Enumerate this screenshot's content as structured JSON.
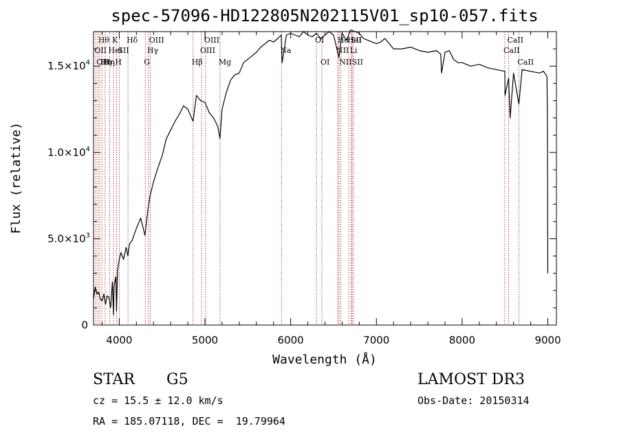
{
  "chart_data": {
    "type": "line",
    "title": "spec-57096-HD122805N202115V01_sp10-057.fits",
    "xlabel": "Wavelength (Å)",
    "ylabel": "Flux (relative)",
    "xlim": [
      3700,
      9100
    ],
    "ylim": [
      0,
      17000
    ],
    "x_ticks": [
      {
        "value": 4000,
        "label": "4000"
      },
      {
        "value": 5000,
        "label": "5000"
      },
      {
        "value": 6000,
        "label": "6000"
      },
      {
        "value": 7000,
        "label": "7000"
      },
      {
        "value": 8000,
        "label": "8000"
      },
      {
        "value": 9000,
        "label": "9000"
      }
    ],
    "y_ticks": [
      {
        "value": 0,
        "mantissa": "0",
        "exp": ""
      },
      {
        "value": 5000,
        "mantissa": "5.0×10",
        "exp": "3"
      },
      {
        "value": 10000,
        "mantissa": "1.0×10",
        "exp": "4"
      },
      {
        "value": 15000,
        "mantissa": "1.5×10",
        "exp": "4"
      }
    ],
    "series": [
      {
        "x": [
          3700,
          3720,
          3740,
          3760,
          3780,
          3800,
          3820,
          3840,
          3860,
          3880,
          3900,
          3920,
          3933,
          3940,
          3960,
          3968,
          3980,
          4000,
          4020,
          4050,
          4080,
          4100,
          4120,
          4150,
          4200,
          4250,
          4300,
          4320,
          4340,
          4360,
          4400,
          4450,
          4500,
          4550,
          4600,
          4650,
          4700,
          4750,
          4800,
          4861,
          4900,
          4950,
          5000,
          5050,
          5100,
          5150,
          5175,
          5200,
          5250,
          5300,
          5350,
          5400,
          5450,
          5500,
          5550,
          5600,
          5650,
          5700,
          5750,
          5800,
          5850,
          5890,
          5900,
          5950,
          6000,
          6050,
          6100,
          6150,
          6200,
          6250,
          6300,
          6350,
          6400,
          6450,
          6500,
          6563,
          6600,
          6650,
          6700,
          6750,
          6800,
          6850,
          6900,
          6950,
          7000,
          7050,
          7100,
          7150,
          7200,
          7300,
          7400,
          7500,
          7600,
          7700,
          7750,
          7760,
          7800,
          7850,
          7900,
          7950,
          8000,
          8100,
          8200,
          8300,
          8400,
          8498,
          8500,
          8542,
          8560,
          8600,
          8662,
          8700,
          8800,
          8900,
          8950,
          8990,
          8995,
          9000
        ],
        "y": [
          1500,
          2200,
          1800,
          1900,
          1500,
          1400,
          1800,
          1200,
          1700,
          1600,
          1000,
          2500,
          600,
          2300,
          2800,
          800,
          3200,
          3800,
          4200,
          3800,
          4500,
          4000,
          4700,
          4900,
          5600,
          6200,
          5200,
          6100,
          6900,
          7500,
          8300,
          9100,
          9800,
          10800,
          11300,
          11800,
          12200,
          12700,
          12500,
          11800,
          13300,
          13000,
          12900,
          12300,
          12000,
          11500,
          10800,
          12500,
          13500,
          14200,
          14500,
          14600,
          15200,
          15400,
          15600,
          15800,
          16100,
          16300,
          16500,
          16400,
          16600,
          16800,
          15200,
          16800,
          16900,
          16800,
          16700,
          17000,
          16800,
          16700,
          16900,
          16600,
          16800,
          17000,
          16800,
          15500,
          16900,
          16500,
          17100,
          17000,
          16900,
          16600,
          16500,
          16400,
          16300,
          16400,
          16600,
          16300,
          16000,
          16000,
          16100,
          15900,
          15800,
          15900,
          15700,
          14600,
          15800,
          15900,
          15400,
          15200,
          15200,
          15000,
          15100,
          14900,
          14800,
          14700,
          13300,
          14300,
          12000,
          14600,
          12800,
          14800,
          14700,
          14600,
          14700,
          14400,
          12000,
          3000
        ]
      }
    ],
    "spectral_lines": [
      {
        "x": 3727,
        "label": "OII",
        "row": 2
      },
      {
        "x": 3750,
        "label": "OII",
        "row": 3
      },
      {
        "x": 3771,
        "label": "Hθ",
        "row": 1
      },
      {
        "x": 3797,
        "label": "Hη",
        "row": 3
      },
      {
        "x": 3835,
        "label": "Hη",
        "row": 3
      },
      {
        "x": 3889,
        "label": "HeI",
        "row": 2
      },
      {
        "x": 3933,
        "label": "K",
        "row": 1
      },
      {
        "x": 3968,
        "label": "H",
        "row": 3
      },
      {
        "x": 4000,
        "label": "SII",
        "row": 2
      },
      {
        "x": 4102,
        "label": "Hδ",
        "row": 1
      },
      {
        "x": 4304,
        "label": "G",
        "row": 3
      },
      {
        "x": 4341,
        "label": "Hγ",
        "row": 2
      },
      {
        "x": 4363,
        "label": "OIII",
        "row": 1
      },
      {
        "x": 4861,
        "label": "Hβ",
        "row": 3
      },
      {
        "x": 4959,
        "label": "OIII",
        "row": 2
      },
      {
        "x": 5007,
        "label": "OIII",
        "row": 1
      },
      {
        "x": 5175,
        "label": "Mg",
        "row": 3
      },
      {
        "x": 5893,
        "label": "Na",
        "row": 2
      },
      {
        "x": 6300,
        "label": "OI",
        "row": 1
      },
      {
        "x": 6364,
        "label": "OI",
        "row": 3
      },
      {
        "x": 6548,
        "label": "NII",
        "row": 2
      },
      {
        "x": 6563,
        "label": "Hα",
        "row": 1
      },
      {
        "x": 6583,
        "label": "NII",
        "row": 3
      },
      {
        "x": 6678,
        "label": "HeI",
        "row": 1
      },
      {
        "x": 6707,
        "label": "Li",
        "row": 2
      },
      {
        "x": 6716,
        "label": "SII",
        "row": 1
      },
      {
        "x": 6731,
        "label": "SII",
        "row": 3
      },
      {
        "x": 8498,
        "label": "CaII",
        "row": 2
      },
      {
        "x": 8542,
        "label": "CaII",
        "row": 1
      },
      {
        "x": 8662,
        "label": "CaII",
        "row": 3
      }
    ]
  },
  "info": {
    "object_class": "STAR",
    "subclass": "G5",
    "redshift": "cz = 15.5 ± 12.0 km/s",
    "coordinates": "RA = 185.07118, DEC =  19.79964",
    "survey": "LAMOST DR3",
    "obs_date": "Obs-Date: 20150314"
  }
}
